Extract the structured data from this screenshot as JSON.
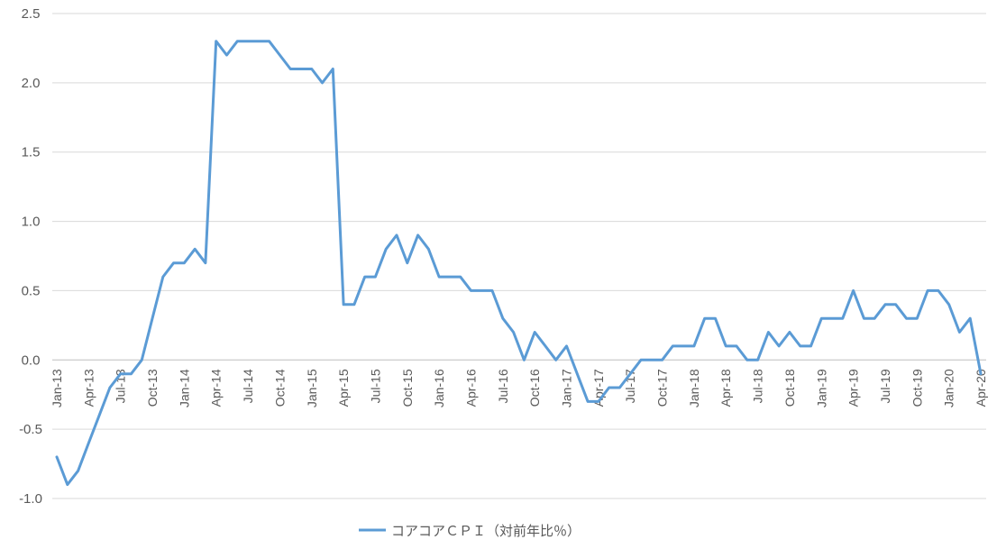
{
  "chart_data": {
    "type": "line",
    "title": "",
    "xlabel": "",
    "ylabel": "",
    "ylim": [
      -1.0,
      2.5
    ],
    "yticks": [
      "2.5",
      "2.0",
      "1.5",
      "1.0",
      "0.5",
      "0.0",
      "-0.5",
      "-1.0"
    ],
    "grid": true,
    "legend_position": "bottom",
    "color": "#5B9BD5",
    "x": [
      "Jan-13",
      "Feb-13",
      "Mar-13",
      "Apr-13",
      "May-13",
      "Jun-13",
      "Jul-13",
      "Aug-13",
      "Sep-13",
      "Oct-13",
      "Nov-13",
      "Dec-13",
      "Jan-14",
      "Feb-14",
      "Mar-14",
      "Apr-14",
      "May-14",
      "Jun-14",
      "Jul-14",
      "Aug-14",
      "Sep-14",
      "Oct-14",
      "Nov-14",
      "Dec-14",
      "Jan-15",
      "Feb-15",
      "Mar-15",
      "Apr-15",
      "May-15",
      "Jun-15",
      "Jul-15",
      "Aug-15",
      "Sep-15",
      "Oct-15",
      "Nov-15",
      "Dec-15",
      "Jan-16",
      "Feb-16",
      "Mar-16",
      "Apr-16",
      "May-16",
      "Jun-16",
      "Jul-16",
      "Aug-16",
      "Sep-16",
      "Oct-16",
      "Nov-16",
      "Dec-16",
      "Jan-17",
      "Feb-17",
      "Mar-17",
      "Apr-17",
      "May-17",
      "Jun-17",
      "Jul-17",
      "Aug-17",
      "Sep-17",
      "Oct-17",
      "Nov-17",
      "Dec-17",
      "Jan-18",
      "Feb-18",
      "Mar-18",
      "Apr-18",
      "May-18",
      "Jun-18",
      "Jul-18",
      "Aug-18",
      "Sep-18",
      "Oct-18",
      "Nov-18",
      "Dec-18",
      "Jan-19",
      "Feb-19",
      "Mar-19",
      "Apr-19",
      "May-19",
      "Jun-19",
      "Jul-19",
      "Aug-19",
      "Sep-19",
      "Oct-19",
      "Nov-19",
      "Dec-19",
      "Jan-20",
      "Feb-20",
      "Mar-20",
      "Apr-20"
    ],
    "tick_labels": [
      "Jan-13",
      "Apr-13",
      "Jul-13",
      "Oct-13",
      "Jan-14",
      "Apr-14",
      "Jul-14",
      "Oct-14",
      "Jan-15",
      "Apr-15",
      "Jul-15",
      "Oct-15",
      "Jan-16",
      "Apr-16",
      "Jul-16",
      "Oct-16",
      "Jan-17",
      "Apr-17",
      "Jul-17",
      "Oct-17",
      "Jan-18",
      "Apr-18",
      "Jul-18",
      "Oct-18",
      "Jan-19",
      "Apr-19",
      "Jul-19",
      "Oct-19",
      "Jan-20",
      "Apr-20"
    ],
    "series": [
      {
        "name": "コアコアＣＰＩ（対前年比％）",
        "values": [
          -0.7,
          -0.9,
          -0.8,
          -0.6,
          -0.4,
          -0.2,
          -0.1,
          -0.1,
          0.0,
          0.3,
          0.6,
          0.7,
          0.7,
          0.8,
          0.7,
          2.3,
          2.2,
          2.3,
          2.3,
          2.3,
          2.3,
          2.2,
          2.1,
          2.1,
          2.1,
          2.0,
          2.1,
          0.4,
          0.4,
          0.6,
          0.6,
          0.8,
          0.9,
          0.7,
          0.9,
          0.8,
          0.6,
          0.6,
          0.6,
          0.5,
          0.5,
          0.5,
          0.3,
          0.2,
          0.0,
          0.2,
          0.1,
          0.0,
          0.1,
          -0.1,
          -0.3,
          -0.3,
          -0.2,
          -0.2,
          -0.1,
          0.0,
          0.0,
          0.0,
          0.1,
          0.1,
          0.1,
          0.3,
          0.3,
          0.1,
          0.1,
          0.0,
          0.0,
          0.2,
          0.1,
          0.2,
          0.1,
          0.1,
          0.3,
          0.3,
          0.3,
          0.5,
          0.3,
          0.3,
          0.4,
          0.4,
          0.3,
          0.3,
          0.5,
          0.5,
          0.4,
          0.2,
          0.3,
          -0.1
        ]
      }
    ]
  }
}
